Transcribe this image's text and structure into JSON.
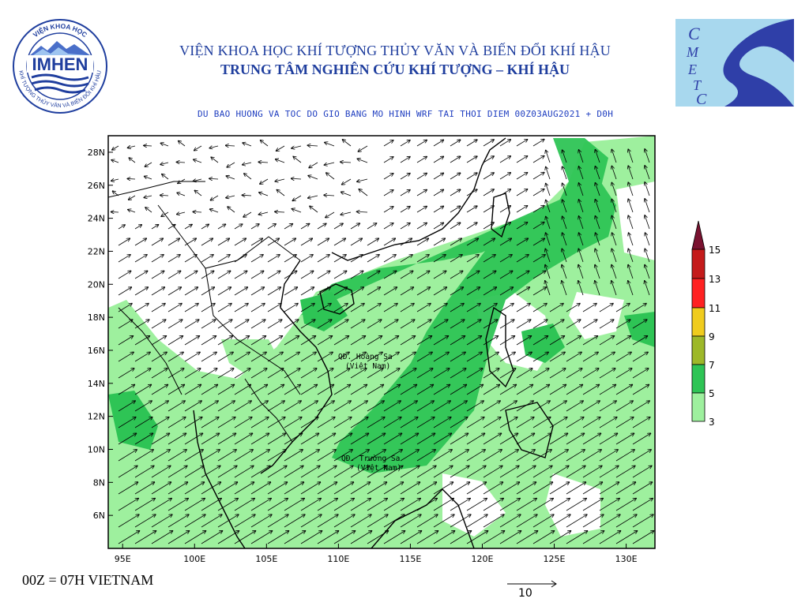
{
  "header": {
    "institute_name": "VIỆN KHOA HỌC KHÍ TƯỢNG THỦY VĂN VÀ BIẾN ĐỔI KHÍ HẬU",
    "center_name": "TRUNG TÂM NGHIÊN CỨU KHÍ TƯỢNG – KHÍ HẬU",
    "subtitle": "DU BAO HUONG VA TOC DO GIO BANG MO HINH WRF TAI THOI DIEM  00Z03AUG2021 + D0H"
  },
  "logos": {
    "left_text": "IMHEN",
    "left_ring_top": "VIỆN KHOA HỌC",
    "left_ring_bottom": "KHÍ TƯỢNG THỦY VĂN VÀ BIẾN ĐỔI KHÍ HẬU",
    "right_letters": [
      "C",
      "M",
      "E",
      "T",
      "C"
    ]
  },
  "map": {
    "type": "wind_vector_map",
    "lon_range": [
      94,
      132
    ],
    "lat_range": [
      4,
      29
    ],
    "lon_ticks": [
      "95E",
      "100E",
      "105E",
      "110E",
      "115E",
      "120E",
      "125E",
      "130E"
    ],
    "lat_ticks": [
      "6N",
      "8N",
      "10N",
      "12N",
      "14N",
      "16N",
      "18N",
      "20N",
      "22N",
      "24N",
      "26N",
      "28N"
    ],
    "labels": {
      "hoang_sa_1": "QĐ. Hoàng Sa",
      "hoang_sa_2": "(Việt Nam)",
      "truong_sa_1": "QĐ. Trường Sa",
      "truong_sa_2": "(Việt Nam)"
    },
    "colors": {
      "land_bg": "#ffffff",
      "c3_5": "#9ef09e",
      "c5_7": "#2ec455",
      "c7_9": "#9db829",
      "c9_11": "#f0cc1e",
      "c11_13": "#ff2222",
      "c13_15": "#c41b1b",
      "c15": "#7a1230"
    }
  },
  "colorbar": {
    "labels": [
      "15",
      "13",
      "11",
      "9",
      "7",
      "5",
      "3"
    ]
  },
  "footer": {
    "time_note": "00Z = 07H VIETNAM",
    "ref_vector_value": "10"
  }
}
